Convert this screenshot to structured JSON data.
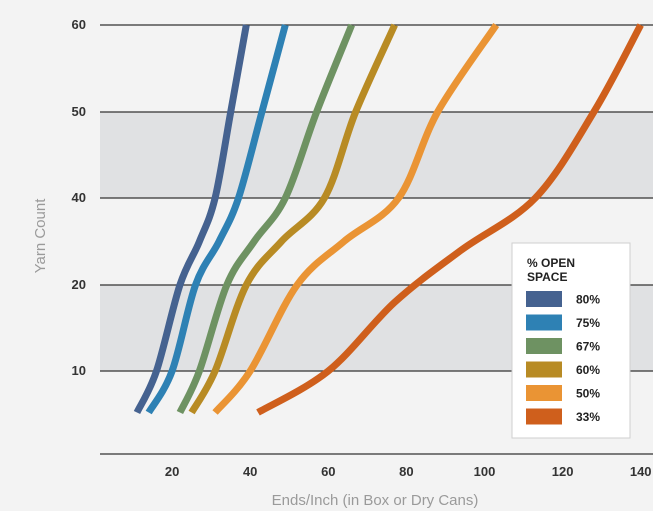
{
  "chart_data": {
    "type": "line",
    "title": "",
    "xlabel": "Ends/Inch (in Box or Dry Cans)",
    "ylabel": "Yarn Count",
    "xlim": [
      0,
      140
    ],
    "x_ticks": [
      20,
      40,
      60,
      80,
      100,
      120,
      140
    ],
    "y_ticks": [
      10,
      20,
      40,
      50,
      60
    ],
    "grid": true,
    "legend_title": "% OPEN SPACE",
    "legend_position": "bottom-right",
    "series": [
      {
        "name": "80%",
        "color": "#456290",
        "points": [
          [
            11,
            5
          ],
          [
            16,
            10
          ],
          [
            22,
            20
          ],
          [
            27,
            30
          ],
          [
            31,
            40
          ],
          [
            35,
            50
          ],
          [
            39,
            60
          ]
        ]
      },
      {
        "name": "75%",
        "color": "#2e81b4",
        "points": [
          [
            14,
            5
          ],
          [
            20,
            10
          ],
          [
            26,
            20
          ],
          [
            32,
            30
          ],
          [
            37,
            40
          ],
          [
            43,
            50
          ],
          [
            49,
            60
          ]
        ]
      },
      {
        "name": "67%",
        "color": "#6e9262",
        "points": [
          [
            22,
            5
          ],
          [
            27,
            10
          ],
          [
            34,
            20
          ],
          [
            41,
            30
          ],
          [
            49,
            40
          ],
          [
            57,
            50
          ],
          [
            66,
            60
          ]
        ]
      },
      {
        "name": "60%",
        "color": "#b88b24",
        "points": [
          [
            25,
            5
          ],
          [
            31,
            10
          ],
          [
            39,
            20
          ],
          [
            48,
            30
          ],
          [
            59,
            40
          ],
          [
            67,
            50
          ],
          [
            77,
            60
          ]
        ]
      },
      {
        "name": "50%",
        "color": "#ea9434",
        "points": [
          [
            31,
            5
          ],
          [
            40,
            10
          ],
          [
            52,
            20
          ],
          [
            64,
            30
          ],
          [
            78,
            40
          ],
          [
            88,
            50
          ],
          [
            103,
            60
          ]
        ]
      },
      {
        "name": "33%",
        "color": "#cf5f1c",
        "points": [
          [
            42,
            5
          ],
          [
            60,
            10
          ],
          [
            77,
            18
          ],
          [
            94,
            28
          ],
          [
            113,
            40
          ],
          [
            128,
            50
          ],
          [
            140,
            60
          ]
        ]
      }
    ]
  }
}
